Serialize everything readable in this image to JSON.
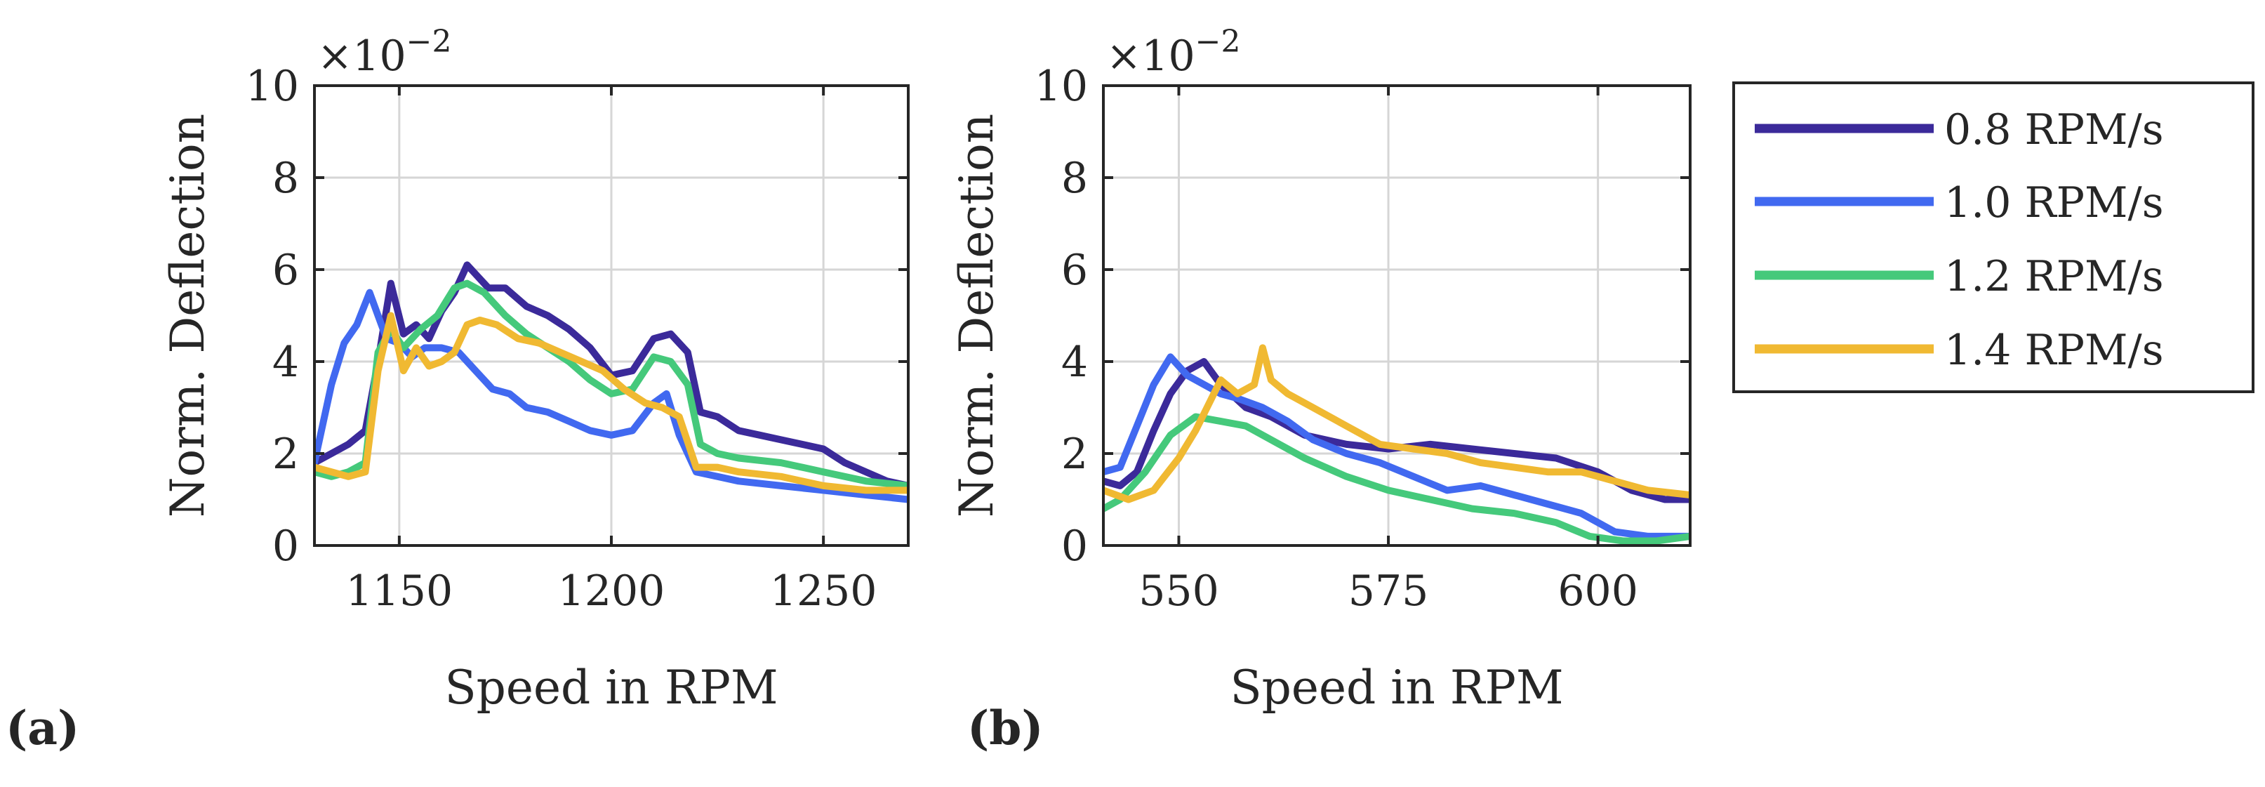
{
  "figure": {
    "panels": [
      {
        "label": "(a)",
        "chart_index": 0
      },
      {
        "label": "(b)",
        "chart_index": 1
      }
    ]
  },
  "chart_data": [
    {
      "type": "line",
      "panel": "(a)",
      "xlabel": "Speed  in RPM",
      "ylabel": "Norm. Deflection",
      "y_multiplier": "×10^-2",
      "y_multiplier_display": {
        "base": "×10",
        "exponent": "−2"
      },
      "xlim": [
        1130,
        1270
      ],
      "ylim": [
        0,
        10
      ],
      "xticks": [
        1150,
        1200,
        1250
      ],
      "yticks": [
        0,
        2,
        4,
        6,
        8,
        10
      ],
      "grid": true,
      "series": [
        {
          "name": "0.8 RPM/s",
          "color": "#3b2a9a",
          "x": [
            1130,
            1134,
            1138,
            1142,
            1145,
            1148,
            1151,
            1154,
            1157,
            1160,
            1163,
            1166,
            1168,
            1171,
            1175,
            1180,
            1185,
            1190,
            1195,
            1200,
            1205,
            1210,
            1214,
            1218,
            1221,
            1225,
            1230,
            1235,
            1240,
            1245,
            1250,
            1255,
            1260,
            1265,
            1270
          ],
          "y": [
            1.8,
            2.0,
            2.2,
            2.5,
            4.0,
            5.7,
            4.6,
            4.8,
            4.5,
            5.1,
            5.5,
            6.1,
            5.9,
            5.6,
            5.6,
            5.2,
            5.0,
            4.7,
            4.3,
            3.7,
            3.8,
            4.5,
            4.6,
            4.2,
            2.9,
            2.8,
            2.5,
            2.4,
            2.3,
            2.2,
            2.1,
            1.8,
            1.6,
            1.4,
            1.3
          ]
        },
        {
          "name": "1.0 RPM/s",
          "color": "#4169f0",
          "x": [
            1130,
            1134,
            1137,
            1140,
            1143,
            1145,
            1147,
            1150,
            1153,
            1156,
            1160,
            1164,
            1168,
            1172,
            1176,
            1180,
            1185,
            1190,
            1195,
            1200,
            1205,
            1210,
            1213,
            1216,
            1220,
            1225,
            1230,
            1240,
            1250,
            1260,
            1270
          ],
          "y": [
            1.8,
            3.5,
            4.4,
            4.8,
            5.5,
            5.0,
            4.5,
            4.4,
            4.1,
            4.3,
            4.3,
            4.2,
            3.8,
            3.4,
            3.3,
            3.0,
            2.9,
            2.7,
            2.5,
            2.4,
            2.5,
            3.1,
            3.3,
            2.4,
            1.6,
            1.5,
            1.4,
            1.3,
            1.2,
            1.1,
            1.0
          ]
        },
        {
          "name": "1.2 RPM/s",
          "color": "#45c97b",
          "x": [
            1130,
            1134,
            1138,
            1142,
            1145,
            1148,
            1151,
            1155,
            1159,
            1163,
            1166,
            1170,
            1175,
            1180,
            1185,
            1190,
            1195,
            1200,
            1205,
            1210,
            1214,
            1218,
            1221,
            1225,
            1230,
            1240,
            1250,
            1260,
            1270
          ],
          "y": [
            1.6,
            1.5,
            1.6,
            1.8,
            4.2,
            4.7,
            4.3,
            4.7,
            5.0,
            5.6,
            5.7,
            5.5,
            5.0,
            4.6,
            4.3,
            4.0,
            3.6,
            3.3,
            3.4,
            4.1,
            4.0,
            3.5,
            2.2,
            2.0,
            1.9,
            1.8,
            1.6,
            1.4,
            1.3
          ]
        },
        {
          "name": "1.4 RPM/s",
          "color": "#f0b932",
          "x": [
            1130,
            1134,
            1138,
            1142,
            1145,
            1148,
            1151,
            1154,
            1157,
            1160,
            1163,
            1166,
            1169,
            1173,
            1178,
            1183,
            1188,
            1193,
            1198,
            1203,
            1208,
            1212,
            1216,
            1220,
            1225,
            1230,
            1240,
            1250,
            1260,
            1270
          ],
          "y": [
            1.7,
            1.6,
            1.5,
            1.6,
            3.8,
            5.0,
            3.8,
            4.3,
            3.9,
            4.0,
            4.2,
            4.8,
            4.9,
            4.8,
            4.5,
            4.4,
            4.2,
            4.0,
            3.8,
            3.4,
            3.1,
            3.0,
            2.8,
            1.7,
            1.7,
            1.6,
            1.5,
            1.3,
            1.2,
            1.2
          ]
        }
      ]
    },
    {
      "type": "line",
      "panel": "(b)",
      "xlabel": "Speed  in RPM",
      "ylabel": "Norm. Deflection",
      "y_multiplier": "×10^-2",
      "y_multiplier_display": {
        "base": "×10",
        "exponent": "−2"
      },
      "xlim": [
        541,
        611
      ],
      "ylim": [
        0,
        10
      ],
      "xticks": [
        550,
        575,
        600
      ],
      "yticks": [
        0,
        2,
        4,
        6,
        8,
        10
      ],
      "grid": true,
      "series": [
        {
          "name": "0.8 RPM/s",
          "color": "#3b2a9a",
          "x": [
            541,
            543,
            545,
            547,
            549,
            551,
            553,
            555,
            558,
            561,
            565,
            570,
            575,
            580,
            585,
            590,
            595,
            600,
            604,
            608,
            611
          ],
          "y": [
            1.4,
            1.3,
            1.6,
            2.5,
            3.3,
            3.8,
            4.0,
            3.5,
            3.0,
            2.8,
            2.4,
            2.2,
            2.1,
            2.2,
            2.1,
            2.0,
            1.9,
            1.6,
            1.2,
            1.0,
            1.0
          ]
        },
        {
          "name": "1.0 RPM/s",
          "color": "#4169f0",
          "x": [
            541,
            543,
            545,
            547,
            549,
            551,
            553,
            555,
            557,
            560,
            563,
            566,
            570,
            574,
            578,
            582,
            586,
            590,
            594,
            598,
            602,
            606,
            611
          ],
          "y": [
            1.6,
            1.7,
            2.6,
            3.5,
            4.1,
            3.7,
            3.5,
            3.3,
            3.2,
            3.0,
            2.7,
            2.3,
            2.0,
            1.8,
            1.5,
            1.2,
            1.3,
            1.1,
            0.9,
            0.7,
            0.3,
            0.2,
            0.2
          ]
        },
        {
          "name": "1.2 RPM/s",
          "color": "#45c97b",
          "x": [
            541,
            543,
            546,
            549,
            552,
            555,
            558,
            561,
            565,
            570,
            575,
            580,
            585,
            590,
            595,
            599,
            603,
            607,
            611
          ],
          "y": [
            0.8,
            1.0,
            1.6,
            2.4,
            2.8,
            2.7,
            2.6,
            2.3,
            1.9,
            1.5,
            1.2,
            1.0,
            0.8,
            0.7,
            0.5,
            0.2,
            0.1,
            0.1,
            0.2
          ]
        },
        {
          "name": "1.4 RPM/s",
          "color": "#f0b932",
          "x": [
            541,
            544,
            547,
            550,
            552,
            555,
            557,
            559,
            560,
            561,
            563,
            566,
            570,
            574,
            578,
            582,
            586,
            590,
            594,
            598,
            602,
            606,
            611
          ],
          "y": [
            1.2,
            1.0,
            1.2,
            1.9,
            2.5,
            3.6,
            3.3,
            3.5,
            4.3,
            3.6,
            3.3,
            3.0,
            2.6,
            2.2,
            2.1,
            2.0,
            1.8,
            1.7,
            1.6,
            1.6,
            1.4,
            1.2,
            1.1
          ]
        }
      ]
    }
  ],
  "legend": {
    "placement": "right",
    "items": [
      {
        "label": "0.8 RPM/s",
        "color": "#3b2a9a"
      },
      {
        "label": "1.0 RPM/s",
        "color": "#4169f0"
      },
      {
        "label": "1.2 RPM/s",
        "color": "#45c97b"
      },
      {
        "label": "1.4 RPM/s",
        "color": "#f0b932"
      }
    ]
  }
}
